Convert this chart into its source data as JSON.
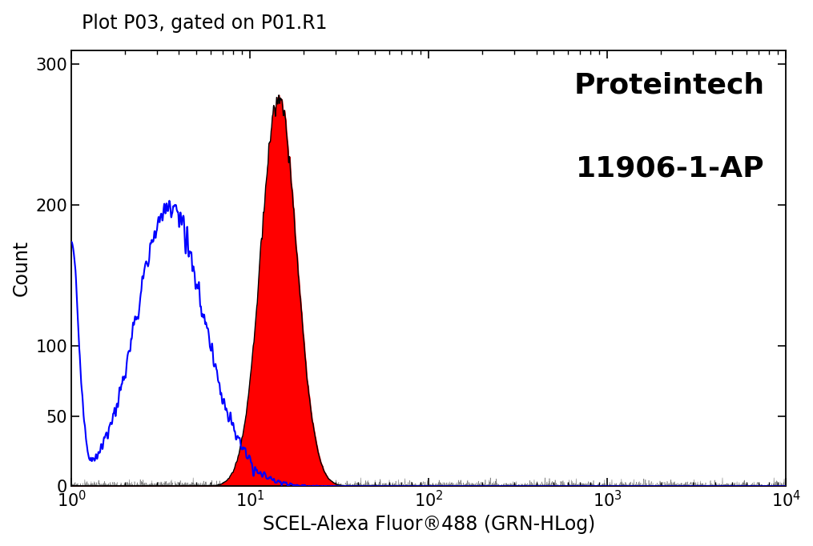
{
  "title": "Plot P03, gated on P01.R1",
  "xlabel": "SCEL-Alexa Fluor®488 (GRN-HLog)",
  "ylabel": "Count",
  "logo_line1": "Proteintech",
  "logo_line2": "11906-1-AP",
  "xlim": [
    1.0,
    10000.0
  ],
  "ylim": [
    0,
    310
  ],
  "yticks": [
    0,
    50,
    100,
    200,
    300
  ],
  "bg_color": "#ffffff",
  "blue_color": "#0000ff",
  "red_color": "#ff0000",
  "black_color": "#000000",
  "blue_peak_log10": 0.57,
  "blue_peak_sigma": 0.22,
  "blue_peak_height": 200,
  "blue_noise_sigma": 0.06,
  "red_peak_log10": 1.16,
  "red_peak_sigma": 0.1,
  "red_peak_height": 275,
  "red_noise_sigma": 0.025,
  "baseline_height": 5,
  "title_fontsize": 17,
  "label_fontsize": 17,
  "tick_fontsize": 15,
  "logo_fontsize": 26
}
